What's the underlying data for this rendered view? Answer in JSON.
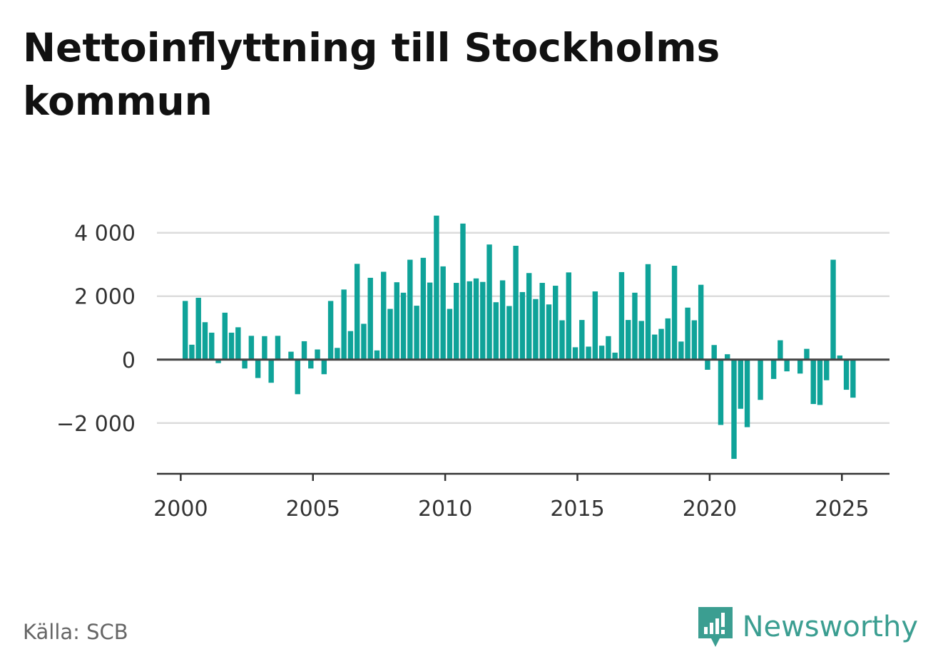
{
  "page": {
    "title": "Nettoinflyttning till Stockholms kommun",
    "source": "Källa: SCB",
    "brand_name": "Newsworthy",
    "brand_icon": "newsworthy-logo-icon",
    "bar_color": "#0fa399",
    "brand_color": "#3b9e91"
  },
  "chart_data": {
    "type": "bar",
    "title": "Nettoinflyttning till Stockholms kommun",
    "xlabel": "",
    "ylabel": "",
    "ylim": [
      -3600,
      4600
    ],
    "xlim": [
      1999.1,
      2026.8
    ],
    "grid": true,
    "yticks": [
      -2000,
      0,
      2000,
      4000
    ],
    "ytick_labels": [
      "−2 000",
      "0",
      "2 000",
      "4 000"
    ],
    "xticks": [
      2000,
      2005,
      2010,
      2015,
      2020,
      2025
    ],
    "xtick_labels": [
      "2000",
      "2005",
      "2010",
      "2015",
      "2020",
      "2025"
    ],
    "bar_width": 0.2,
    "series": [
      {
        "x": [
          2000.17,
          2000.42,
          2000.67,
          2000.92,
          2001.17,
          2001.42,
          2001.67,
          2001.92,
          2002.17,
          2002.42,
          2002.67,
          2002.92,
          2003.17,
          2003.42,
          2003.67,
          2003.92,
          2004.17,
          2004.42,
          2004.67,
          2004.92,
          2005.17,
          2005.42,
          2005.67,
          2005.92,
          2006.17,
          2006.42,
          2006.67,
          2006.92,
          2007.17,
          2007.42,
          2007.67,
          2007.92,
          2008.17,
          2008.42,
          2008.67,
          2008.92,
          2009.17,
          2009.42,
          2009.67,
          2009.92,
          2010.17,
          2010.42,
          2010.67,
          2010.92,
          2011.17,
          2011.42,
          2011.67,
          2011.92,
          2012.17,
          2012.42,
          2012.67,
          2012.92,
          2013.17,
          2013.42,
          2013.67,
          2013.92,
          2014.17,
          2014.42,
          2014.67,
          2014.92,
          2015.17,
          2015.42,
          2015.67,
          2015.92,
          2016.17,
          2016.42,
          2016.67,
          2016.92,
          2017.17,
          2017.42,
          2017.67,
          2017.92,
          2018.17,
          2018.42,
          2018.67,
          2018.92,
          2019.17,
          2019.42,
          2019.67,
          2019.92,
          2020.17,
          2020.42,
          2020.67,
          2020.92,
          2021.17,
          2021.42,
          2021.67,
          2021.92,
          2022.17,
          2022.42,
          2022.67,
          2022.92,
          2023.17,
          2023.42,
          2023.67,
          2023.92,
          2024.17,
          2024.42,
          2024.67,
          2024.92,
          2025.17,
          2025.42
        ],
        "values": [
          1850,
          470,
          1950,
          1180,
          850,
          -110,
          1480,
          850,
          1020,
          -280,
          750,
          -580,
          740,
          -730,
          750,
          0,
          250,
          -1090,
          580,
          -280,
          320,
          -460,
          1850,
          370,
          2210,
          900,
          3020,
          1130,
          2580,
          290,
          2770,
          1600,
          2440,
          2110,
          3150,
          1700,
          3210,
          2430,
          4540,
          2940,
          1600,
          2420,
          4290,
          2470,
          2560,
          2450,
          3630,
          1810,
          2500,
          1690,
          3590,
          2130,
          2730,
          1910,
          2420,
          1740,
          2330,
          1240,
          2750,
          390,
          1250,
          410,
          2150,
          440,
          740,
          220,
          2760,
          1250,
          2110,
          1220,
          3010,
          790,
          970,
          1300,
          2960,
          570,
          1640,
          1240,
          2360,
          -320,
          460,
          -2060,
          170,
          -3130,
          -1550,
          -2130,
          0,
          -1270,
          0,
          -610,
          610,
          -370,
          0,
          -440,
          340,
          -1400,
          -1430,
          -650,
          3150,
          130,
          -950,
          -1200
        ]
      }
    ]
  }
}
